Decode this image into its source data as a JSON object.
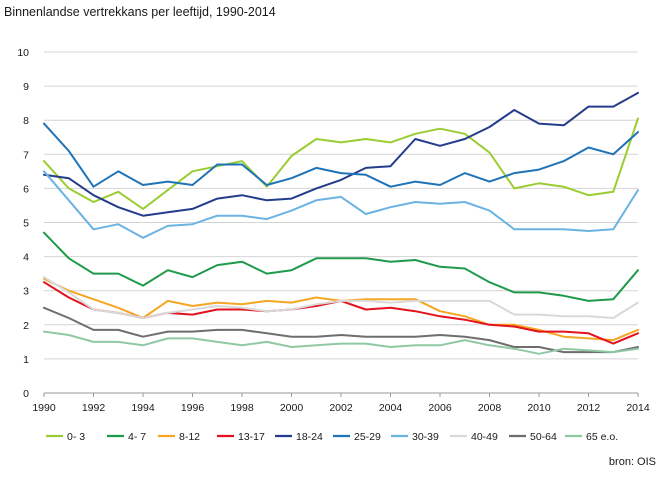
{
  "chart_data": {
    "type": "line",
    "title": "Binnenlandse vertrekkans per leeftijd, 1990-2014",
    "source": "bron: OIS",
    "ylim": [
      0,
      10
    ],
    "yticks": [
      "0",
      "1",
      "2",
      "3",
      "4",
      "5",
      "6",
      "7",
      "8",
      "9",
      "10"
    ],
    "xlim": [
      1990,
      2014
    ],
    "xticks": [
      "1990",
      "1992",
      "1994",
      "1996",
      "1998",
      "2000",
      "2002",
      "2004",
      "2006",
      "2008",
      "2010",
      "2012",
      "2014"
    ],
    "grid": true,
    "legend_position": "bottom",
    "x": [
      1990,
      1991,
      1992,
      1993,
      1994,
      1995,
      1996,
      1997,
      1998,
      1999,
      2000,
      2001,
      2002,
      2003,
      2004,
      2005,
      2006,
      2007,
      2008,
      2009,
      2010,
      2011,
      2012,
      2013,
      2014
    ],
    "series": [
      {
        "name": "0- 3",
        "color": "#9acd32",
        "values": [
          6.8,
          6.0,
          5.6,
          5.9,
          5.4,
          5.95,
          6.5,
          6.65,
          6.8,
          6.05,
          6.95,
          7.45,
          7.35,
          7.45,
          7.35,
          7.6,
          7.75,
          7.6,
          7.05,
          6.0,
          6.15,
          6.05,
          5.8,
          5.9,
          8.05
        ]
      },
      {
        "name": "4- 7",
        "color": "#1f9a4a",
        "values": [
          4.7,
          3.95,
          3.5,
          3.5,
          3.15,
          3.6,
          3.4,
          3.75,
          3.85,
          3.5,
          3.6,
          3.95,
          3.95,
          3.95,
          3.85,
          3.9,
          3.7,
          3.65,
          3.25,
          2.95,
          2.95,
          2.85,
          2.7,
          2.75,
          3.6
        ]
      },
      {
        "name": "8-12",
        "color": "#f5a623",
        "values": [
          3.35,
          3.0,
          2.75,
          2.5,
          2.2,
          2.7,
          2.55,
          2.65,
          2.6,
          2.7,
          2.65,
          2.8,
          2.7,
          2.75,
          2.75,
          2.75,
          2.4,
          2.25,
          2.0,
          2.0,
          1.85,
          1.65,
          1.6,
          1.55,
          1.85
        ]
      },
      {
        "name": "13-17",
        "color": "#e3121e",
        "values": [
          3.25,
          2.8,
          2.45,
          2.35,
          2.2,
          2.35,
          2.3,
          2.45,
          2.45,
          2.4,
          2.45,
          2.55,
          2.7,
          2.45,
          2.5,
          2.4,
          2.25,
          2.15,
          2.0,
          1.95,
          1.8,
          1.8,
          1.75,
          1.45,
          1.75
        ]
      },
      {
        "name": "18-24",
        "color": "#243c8c",
        "values": [
          6.4,
          6.3,
          5.8,
          5.45,
          5.2,
          5.3,
          5.4,
          5.7,
          5.8,
          5.65,
          5.7,
          6.0,
          6.25,
          6.6,
          6.65,
          7.45,
          7.25,
          7.45,
          7.8,
          8.3,
          7.9,
          7.85,
          8.4,
          8.4,
          8.8
        ]
      },
      {
        "name": "25-29",
        "color": "#1f73b7",
        "values": [
          7.9,
          7.1,
          6.05,
          6.5,
          6.1,
          6.2,
          6.1,
          6.7,
          6.7,
          6.1,
          6.3,
          6.6,
          6.45,
          6.4,
          6.05,
          6.2,
          6.1,
          6.45,
          6.2,
          6.45,
          6.55,
          6.8,
          7.2,
          7.0,
          7.65
        ]
      },
      {
        "name": "30-39",
        "color": "#6bb3e3",
        "values": [
          6.5,
          5.65,
          4.8,
          4.95,
          4.55,
          4.9,
          4.95,
          5.2,
          5.2,
          5.1,
          5.35,
          5.65,
          5.75,
          5.25,
          5.45,
          5.6,
          5.55,
          5.6,
          5.35,
          4.8,
          4.8,
          4.8,
          4.75,
          4.8,
          5.95
        ]
      },
      {
        "name": "40-49",
        "color": "#d9d9d9",
        "values": [
          3.4,
          2.95,
          2.45,
          2.35,
          2.2,
          2.35,
          2.45,
          2.55,
          2.5,
          2.4,
          2.45,
          2.6,
          2.7,
          2.7,
          2.65,
          2.7,
          2.7,
          2.7,
          2.7,
          2.3,
          2.3,
          2.25,
          2.25,
          2.2,
          2.65
        ]
      },
      {
        "name": "50-64",
        "color": "#6e6e6e",
        "values": [
          2.5,
          2.2,
          1.85,
          1.85,
          1.65,
          1.8,
          1.8,
          1.85,
          1.85,
          1.75,
          1.65,
          1.65,
          1.7,
          1.65,
          1.65,
          1.65,
          1.7,
          1.65,
          1.55,
          1.35,
          1.35,
          1.2,
          1.2,
          1.2,
          1.35
        ]
      },
      {
        "name": "65 e.o.",
        "color": "#8fc9a3",
        "values": [
          1.8,
          1.7,
          1.5,
          1.5,
          1.4,
          1.6,
          1.6,
          1.5,
          1.4,
          1.5,
          1.35,
          1.4,
          1.45,
          1.45,
          1.35,
          1.4,
          1.4,
          1.55,
          1.4,
          1.3,
          1.15,
          1.3,
          1.25,
          1.2,
          1.3
        ]
      }
    ]
  }
}
